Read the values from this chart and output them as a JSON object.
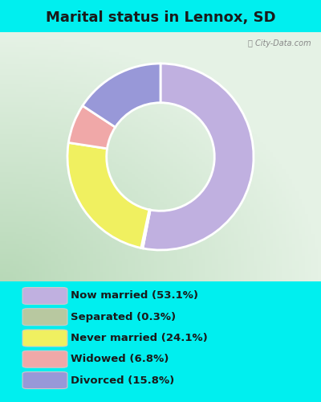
{
  "title": "Marital status in Lennox, SD",
  "title_fontsize": 13,
  "bg_cyan": "#00EFEF",
  "bg_chart_grad_left": "#c8e8c8",
  "bg_chart_grad_right": "#e8f4e8",
  "slices": [
    {
      "label": "Now married (53.1%)",
      "value": 53.1,
      "color": "#c0b0e0"
    },
    {
      "label": "Separated (0.3%)",
      "value": 0.3,
      "color": "#b8c8a0"
    },
    {
      "label": "Never married (24.1%)",
      "value": 24.1,
      "color": "#f0f060"
    },
    {
      "label": "Widowed (6.8%)",
      "value": 6.8,
      "color": "#f0a8a8"
    },
    {
      "label": "Divorced (15.8%)",
      "value": 15.8,
      "color": "#9898d8"
    }
  ],
  "startangle": 90,
  "donut_width": 0.42,
  "figsize": [
    4.0,
    5.0
  ],
  "dpi": 100
}
